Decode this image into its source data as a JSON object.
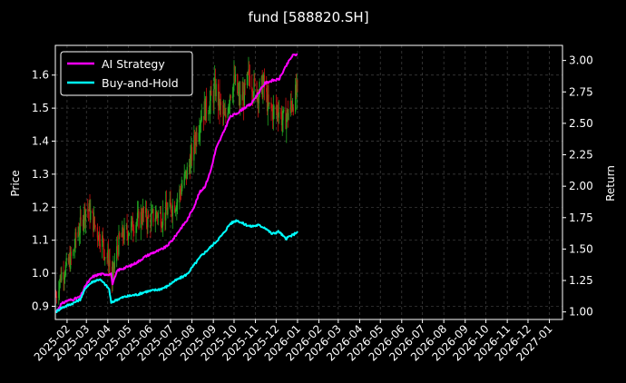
{
  "chart_data": {
    "type": "line",
    "title": "fund [588820.SH]",
    "xlabel": "",
    "ylabel": "Price",
    "y2label": "Return",
    "grid": true,
    "legend_position": "top-left",
    "x_ticks": [
      "2025-02",
      "2025-03",
      "2025-04",
      "2025-05",
      "2025-06",
      "2025-07",
      "2025-08",
      "2025-09",
      "2025-10",
      "2025-11",
      "2025-12",
      "2026-01",
      "2026-02",
      "2026-03",
      "2026-04",
      "2026-05",
      "2026-06",
      "2026-07",
      "2026-08",
      "2026-09",
      "2026-10",
      "2026-11",
      "2026-12",
      "2027-01"
    ],
    "xlim": [
      "2025-01-15",
      "2027-01-20"
    ],
    "ylim": [
      0.86,
      1.69
    ],
    "y_ticks": [
      0.9,
      1.0,
      1.1,
      1.2,
      1.3,
      1.4,
      1.5,
      1.6
    ],
    "y2lim": [
      0.94,
      3.12
    ],
    "y2_ticks": [
      1.0,
      1.25,
      1.5,
      1.75,
      2.0,
      2.25,
      2.5,
      2.75,
      3.0
    ],
    "y2_tick_labels": [
      "1.00",
      "1.25",
      "1.50",
      "1.75",
      "2.00",
      "2.25",
      "2.50",
      "2.75",
      "3.00"
    ],
    "colors": {
      "background": "#000000",
      "up": "#22aa22",
      "down": "#cc1111",
      "grid": "#444444",
      "axis": "#ffffff"
    },
    "price_series": {
      "name": "",
      "axis": "left",
      "x": [
        "2025-01-16",
        "2025-01-20",
        "2025-01-24",
        "2025-02-01",
        "2025-02-10",
        "2025-02-15",
        "2025-02-20",
        "2025-02-25",
        "2025-03-01",
        "2025-03-07",
        "2025-03-12",
        "2025-03-18",
        "2025-03-24",
        "2025-03-28",
        "2025-04-03",
        "2025-04-07",
        "2025-04-12",
        "2025-04-18",
        "2025-04-25",
        "2025-05-01",
        "2025-05-08",
        "2025-05-15",
        "2025-05-22",
        "2025-05-29",
        "2025-06-05",
        "2025-06-12",
        "2025-06-19",
        "2025-06-26",
        "2025-07-03",
        "2025-07-10",
        "2025-07-17",
        "2025-07-24",
        "2025-07-31",
        "2025-08-07",
        "2025-08-14",
        "2025-08-21",
        "2025-08-28",
        "2025-09-04",
        "2025-09-11",
        "2025-09-18",
        "2025-09-25",
        "2025-10-02",
        "2025-10-09",
        "2025-10-16",
        "2025-10-23",
        "2025-10-30",
        "2025-11-06",
        "2025-11-13",
        "2025-11-20",
        "2025-11-27",
        "2025-12-04",
        "2025-12-11",
        "2025-12-18",
        "2025-12-25",
        "2026-01-01"
      ],
      "values": [
        0.93,
        0.97,
        1.0,
        1.02,
        1.06,
        1.12,
        1.14,
        1.18,
        1.2,
        1.18,
        1.15,
        1.12,
        1.1,
        1.06,
        1.04,
        0.97,
        1.05,
        1.1,
        1.12,
        1.13,
        1.15,
        1.16,
        1.18,
        1.16,
        1.17,
        1.18,
        1.17,
        1.19,
        1.2,
        1.22,
        1.26,
        1.3,
        1.35,
        1.42,
        1.48,
        1.5,
        1.52,
        1.56,
        1.5,
        1.46,
        1.55,
        1.58,
        1.52,
        1.54,
        1.6,
        1.56,
        1.55,
        1.57,
        1.5,
        1.49,
        1.5,
        1.46,
        1.48,
        1.52,
        1.55
      ]
    },
    "series": [
      {
        "name": "AI Strategy",
        "axis": "right",
        "color": "#ff00ff",
        "x": [
          "2025-01-16",
          "2025-01-23",
          "2025-02-01",
          "2025-02-10",
          "2025-02-20",
          "2025-03-01",
          "2025-03-10",
          "2025-03-20",
          "2025-04-01",
          "2025-04-06",
          "2025-04-08",
          "2025-04-15",
          "2025-04-25",
          "2025-05-05",
          "2025-05-15",
          "2025-05-25",
          "2025-06-05",
          "2025-06-15",
          "2025-06-25",
          "2025-07-05",
          "2025-07-15",
          "2025-07-25",
          "2025-08-05",
          "2025-08-12",
          "2025-08-20",
          "2025-08-28",
          "2025-09-05",
          "2025-09-15",
          "2025-09-25",
          "2025-10-05",
          "2025-10-15",
          "2025-10-25",
          "2025-11-05",
          "2025-11-15",
          "2025-11-25",
          "2025-12-05",
          "2025-12-10",
          "2025-12-15",
          "2025-12-20",
          "2025-12-25",
          "2026-01-01"
        ],
        "values": [
          1.0,
          1.06,
          1.09,
          1.1,
          1.12,
          1.22,
          1.28,
          1.3,
          1.3,
          1.3,
          1.22,
          1.33,
          1.35,
          1.37,
          1.4,
          1.44,
          1.47,
          1.49,
          1.52,
          1.58,
          1.66,
          1.73,
          1.85,
          1.95,
          2.0,
          2.12,
          2.3,
          2.42,
          2.55,
          2.58,
          2.62,
          2.65,
          2.74,
          2.82,
          2.84,
          2.85,
          2.9,
          2.95,
          3.0,
          3.04,
          3.05
        ]
      },
      {
        "name": "Buy-and-Hold",
        "axis": "right",
        "color": "#00ffff",
        "x": [
          "2025-01-16",
          "2025-01-23",
          "2025-02-01",
          "2025-02-10",
          "2025-02-20",
          "2025-03-01",
          "2025-03-10",
          "2025-03-20",
          "2025-03-28",
          "2025-04-03",
          "2025-04-06",
          "2025-04-08",
          "2025-04-15",
          "2025-04-25",
          "2025-05-05",
          "2025-05-15",
          "2025-05-25",
          "2025-06-05",
          "2025-06-15",
          "2025-06-25",
          "2025-07-05",
          "2025-07-15",
          "2025-07-25",
          "2025-08-05",
          "2025-08-15",
          "2025-08-25",
          "2025-09-05",
          "2025-09-15",
          "2025-09-25",
          "2025-10-05",
          "2025-10-15",
          "2025-10-25",
          "2025-11-05",
          "2025-11-15",
          "2025-11-25",
          "2025-12-05",
          "2025-12-15",
          "2025-12-20",
          "2025-12-25",
          "2026-01-01"
        ],
        "values": [
          1.0,
          1.03,
          1.05,
          1.07,
          1.1,
          1.2,
          1.24,
          1.26,
          1.22,
          1.18,
          1.07,
          1.08,
          1.1,
          1.12,
          1.13,
          1.14,
          1.16,
          1.17,
          1.18,
          1.2,
          1.24,
          1.27,
          1.3,
          1.38,
          1.45,
          1.5,
          1.56,
          1.62,
          1.7,
          1.73,
          1.7,
          1.68,
          1.69,
          1.67,
          1.62,
          1.64,
          1.58,
          1.6,
          1.61,
          1.64
        ]
      }
    ]
  }
}
